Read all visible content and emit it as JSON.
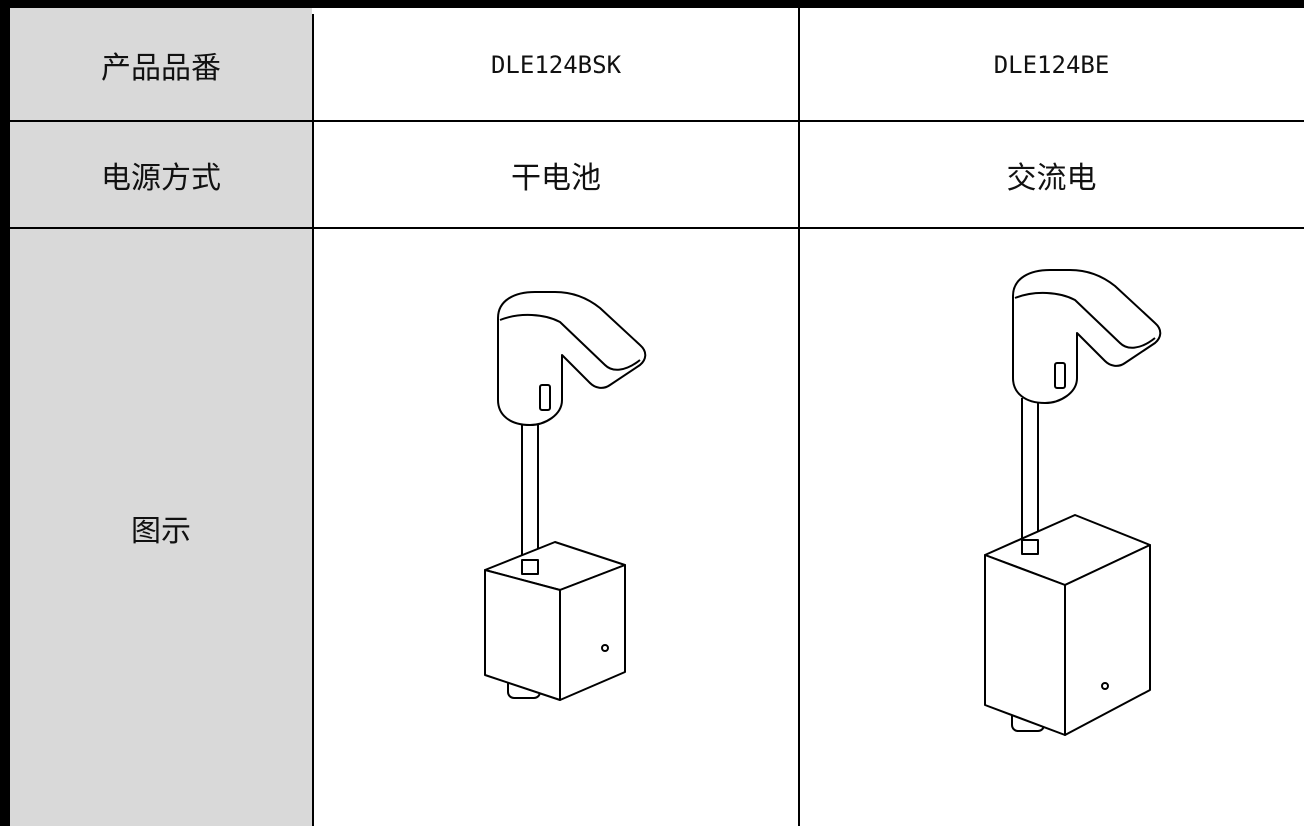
{
  "table": {
    "rows": [
      [
        "产品品番",
        "DLE124BSK",
        "DLE124BE"
      ],
      [
        "电源方式",
        "干电池",
        "交流电"
      ],
      [
        "图示"
      ]
    ]
  }
}
